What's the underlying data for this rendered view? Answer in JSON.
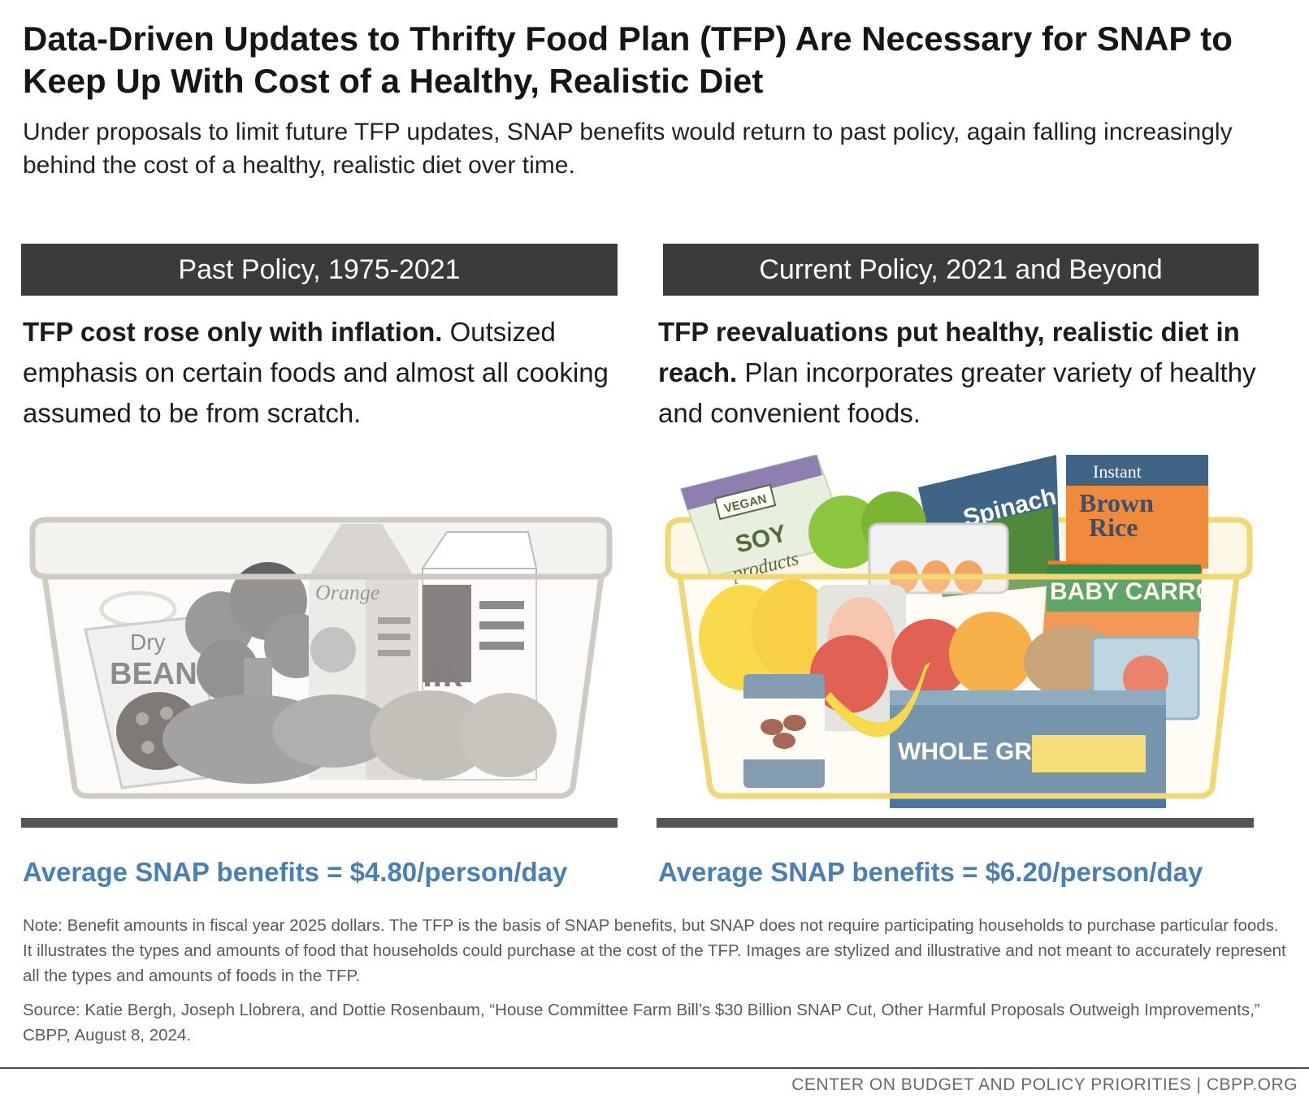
{
  "title": "Data-Driven Updates to Thrifty Food Plan (TFP) Are Necessary for SNAP to Keep Up With Cost of a Healthy, Realistic Diet",
  "subtitle": "Under proposals to limit future TFP updates, SNAP benefits would return to past policy, again falling increasingly behind the cost of a healthy, realistic diet over time.",
  "left": {
    "header": "Past Policy, 1975-2021",
    "desc_bold": "TFP cost rose only with inflation.",
    "desc_rest": " Outsized emphasis on certain foods and almost all cooking assumed to be from scratch.",
    "benefit": "Average SNAP benefits = $4.80/person/day",
    "labels": {
      "beans_1": "Dry",
      "beans_2": "BEANS",
      "orange": "Orange",
      "milk": "ilk"
    }
  },
  "right": {
    "header": "Current Policy, 2021 and Beyond",
    "desc_bold": "TFP reevaluations put healthy, realistic diet in reach.",
    "desc_rest": " Plan incorporates greater variety of healthy and convenient foods.",
    "benefit": "Average SNAP benefits = $6.20/person/day",
    "labels": {
      "vegan": "VEGAN",
      "soy_1": "SOY",
      "soy_2": "products",
      "spinach": "Spinach",
      "rice_1": "Instant",
      "rice_2": "Brown",
      "rice_3": "Rice",
      "carrots": "BABY CARROTS",
      "grain": "WHOLE GRAIN"
    }
  },
  "note": "Note: Benefit amounts in fiscal year 2025 dollars. The TFP is the basis of SNAP benefits, but SNAP does not require participating households to purchase particular foods. It illustrates the types and amounts of food that households could purchase at the cost of the TFP. Images are stylized and illustrative and not meant to accurately represent all the types and amounts of foods in the TFP.",
  "source": "Source: Katie Bergh, Joseph Llobrera, and Dottie Rosenbaum, “House Committee Farm Bill’s $30 Billion SNAP Cut, Other Harmful Proposals Outweigh Improvements,” CBPP, August 8, 2024.",
  "footer": "CENTER ON BUDGET AND POLICY PRIORITIES | CBPP.ORG",
  "colors": {
    "header_bg": "#3b3b3b",
    "benefit": "#4a7fb5",
    "shelf": "#555555",
    "basket_past": "#cfcac2",
    "basket_current": "#f2d875"
  }
}
